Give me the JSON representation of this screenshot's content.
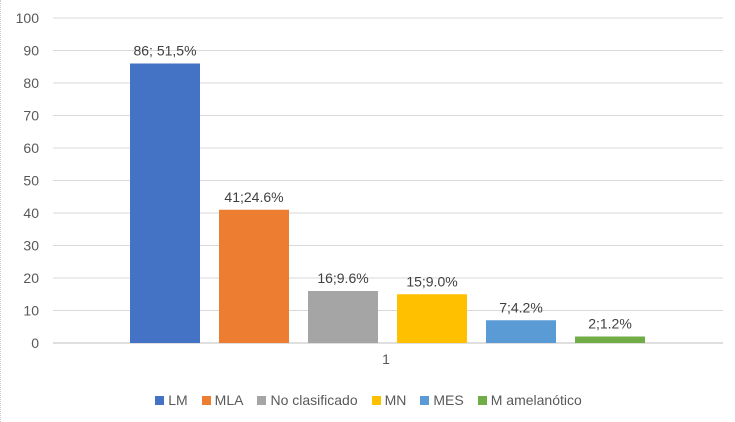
{
  "chart_data": {
    "type": "bar",
    "categories": [
      "1"
    ],
    "series": [
      {
        "name": "LM",
        "values": [
          86
        ],
        "label": "86; 51,5%",
        "color": "#4472C4"
      },
      {
        "name": "MLA",
        "values": [
          41
        ],
        "label": "41;24.6%",
        "color": "#ED7D31"
      },
      {
        "name": "No clasificado",
        "values": [
          16
        ],
        "label": "16;9.6%",
        "color": "#A5A5A5"
      },
      {
        "name": "MN",
        "values": [
          15
        ],
        "label": "15;9.0%",
        "color": "#FFC000"
      },
      {
        "name": "MES",
        "values": [
          7
        ],
        "label": "7;4.2%",
        "color": "#5B9BD5"
      },
      {
        "name": "M amelanótico",
        "values": [
          2
        ],
        "label": "2;1.2%",
        "color": "#70AD47"
      }
    ],
    "ylim": [
      0,
      100
    ],
    "yticks": [
      "0",
      "10",
      "20",
      "30",
      "40",
      "50",
      "60",
      "70",
      "80",
      "90",
      "100"
    ],
    "grid": true,
    "legend": "bottom"
  }
}
